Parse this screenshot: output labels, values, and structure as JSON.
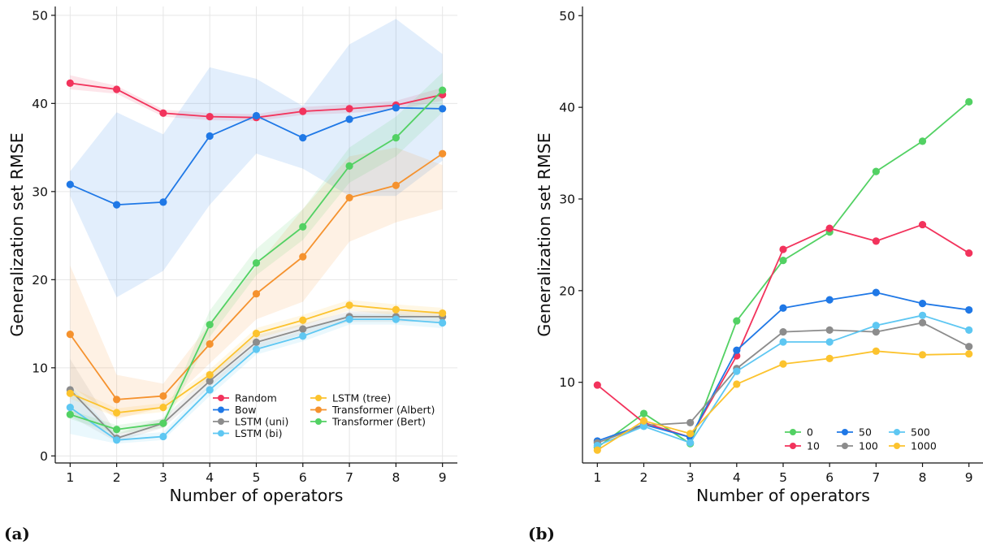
{
  "chart_data": [
    {
      "type": "line",
      "panel_label": "(a)",
      "xlabel": "Number of operators",
      "ylabel": "Generalization set RMSE",
      "x": [
        1,
        2,
        3,
        4,
        5,
        6,
        7,
        8,
        9
      ],
      "x_ticks": [
        "1",
        "2",
        "3",
        "4",
        "5",
        "6",
        "7",
        "8",
        "9"
      ],
      "y_ticks": [
        "0",
        "10",
        "20",
        "30",
        "40",
        "50"
      ],
      "ylim": [
        -0.8,
        51
      ],
      "grid": true,
      "legend_position": "lower-right",
      "legend_columns": 2,
      "series": [
        {
          "name": "Random",
          "color": "#f2335c",
          "values": [
            42.3,
            41.6,
            38.9,
            38.5,
            38.4,
            39.1,
            39.4,
            39.8,
            41.0
          ],
          "band": [
            [
              41.6,
              43.2
            ],
            [
              41.1,
              42.0
            ],
            [
              38.5,
              39.3
            ],
            [
              38.1,
              38.9
            ],
            [
              38.0,
              38.8
            ],
            [
              38.7,
              39.6
            ],
            [
              38.9,
              39.9
            ],
            [
              39.3,
              40.3
            ],
            [
              40.3,
              41.8
            ]
          ]
        },
        {
          "name": "Bow",
          "color": "#1f78e6",
          "values": [
            30.8,
            28.5,
            28.8,
            36.3,
            38.6,
            36.1,
            38.2,
            39.5,
            39.4
          ],
          "band": [
            [
              29.5,
              32.3
            ],
            [
              18.0,
              39.0
            ],
            [
              21.0,
              36.5
            ],
            [
              28.5,
              44.1
            ],
            [
              34.3,
              42.8
            ],
            [
              32.6,
              39.7
            ],
            [
              29.5,
              46.7
            ],
            [
              29.5,
              49.6
            ],
            [
              33.5,
              45.6
            ]
          ]
        },
        {
          "name": "LSTM (uni)",
          "color": "#8c8c8c",
          "values": [
            7.5,
            2.0,
            3.7,
            8.5,
            12.9,
            14.4,
            15.8,
            15.8,
            15.8
          ],
          "band": [
            [
              4.5,
              11.0
            ],
            [
              1.6,
              2.5
            ],
            [
              3.2,
              4.3
            ],
            [
              7.8,
              9.3
            ],
            [
              12.2,
              13.7
            ],
            [
              13.8,
              15.0
            ],
            [
              15.2,
              16.4
            ],
            [
              15.2,
              16.4
            ],
            [
              15.2,
              16.4
            ]
          ]
        },
        {
          "name": "LSTM (bi)",
          "color": "#5ec7f2",
          "values": [
            5.5,
            1.8,
            2.2,
            7.5,
            12.1,
            13.6,
            15.5,
            15.5,
            15.1
          ],
          "band": [
            [
              2.5,
              8.0
            ],
            [
              1.4,
              2.3
            ],
            [
              1.8,
              2.7
            ],
            [
              6.8,
              8.2
            ],
            [
              11.5,
              12.7
            ],
            [
              13.0,
              14.2
            ],
            [
              14.9,
              16.1
            ],
            [
              14.9,
              16.1
            ],
            [
              14.5,
              15.7
            ]
          ]
        },
        {
          "name": "LSTM (tree)",
          "color": "#fcc32e",
          "values": [
            7.1,
            4.9,
            5.5,
            9.2,
            13.9,
            15.4,
            17.1,
            16.6,
            16.2
          ],
          "band": [
            [
              6.5,
              7.8
            ],
            [
              4.4,
              5.4
            ],
            [
              5.0,
              6.0
            ],
            [
              8.6,
              9.8
            ],
            [
              13.3,
              14.5
            ],
            [
              14.8,
              16.0
            ],
            [
              16.5,
              17.7
            ],
            [
              16.0,
              17.2
            ],
            [
              15.6,
              16.8
            ]
          ]
        },
        {
          "name": "Transformer (Albert)",
          "color": "#f5922e",
          "values": [
            13.8,
            6.4,
            6.8,
            12.7,
            18.4,
            22.6,
            29.3,
            30.7,
            34.3
          ],
          "band": [
            [
              8.0,
              21.6
            ],
            [
              4.2,
              9.2
            ],
            [
              5.5,
              8.2
            ],
            [
              10.5,
              15.0
            ],
            [
              15.5,
              21.5
            ],
            [
              17.5,
              28.0
            ],
            [
              24.3,
              34.0
            ],
            [
              26.5,
              35.0
            ],
            [
              28.0,
              33.0
            ]
          ]
        },
        {
          "name": "Transformer (Bert)",
          "color": "#52d163",
          "values": [
            4.7,
            3.0,
            3.7,
            14.9,
            21.9,
            26.0,
            32.9,
            36.1,
            41.5
          ],
          "band": [
            [
              4.2,
              5.2
            ],
            [
              2.5,
              3.5
            ],
            [
              3.2,
              4.2
            ],
            [
              13.5,
              16.5
            ],
            [
              20.5,
              23.5
            ],
            [
              24.5,
              28.0
            ],
            [
              31.0,
              35.0
            ],
            [
              34.0,
              38.5
            ],
            [
              39.0,
              43.5
            ]
          ]
        }
      ]
    },
    {
      "type": "line",
      "panel_label": "(b)",
      "xlabel": "Number of operators",
      "ylabel": "Generalization set RMSE",
      "x": [
        1,
        2,
        3,
        4,
        5,
        6,
        7,
        8,
        9
      ],
      "x_ticks": [
        "1",
        "2",
        "3",
        "4",
        "5",
        "6",
        "7",
        "8",
        "9"
      ],
      "y_ticks": [
        "10",
        "20",
        "30",
        "40",
        "50"
      ],
      "ylim": [
        1.2,
        51
      ],
      "grid": false,
      "legend_position": "lower-right",
      "legend_columns": 3,
      "series": [
        {
          "name": "0",
          "color": "#52d163",
          "values": [
            2.9,
            6.6,
            3.3,
            16.7,
            23.3,
            26.4,
            33.0,
            36.3,
            40.6
          ]
        },
        {
          "name": "10",
          "color": "#f2335c",
          "values": [
            9.7,
            5.6,
            4.0,
            12.9,
            24.5,
            26.8,
            25.4,
            27.2,
            24.1
          ]
        },
        {
          "name": "50",
          "color": "#1f78e6",
          "values": [
            3.6,
            5.4,
            4.0,
            13.5,
            18.1,
            19.0,
            19.8,
            18.6,
            17.9
          ]
        },
        {
          "name": "100",
          "color": "#8c8c8c",
          "values": [
            3.4,
            5.3,
            5.6,
            11.5,
            15.5,
            15.7,
            15.5,
            16.5,
            13.9
          ]
        },
        {
          "name": "500",
          "color": "#5ec7f2",
          "values": [
            3.1,
            5.2,
            3.4,
            11.2,
            14.4,
            14.4,
            16.2,
            17.3,
            15.7
          ]
        },
        {
          "name": "1000",
          "color": "#fcc32e",
          "values": [
            2.6,
            5.8,
            4.4,
            9.8,
            12.0,
            12.6,
            13.4,
            13.0,
            13.1
          ]
        }
      ]
    }
  ]
}
